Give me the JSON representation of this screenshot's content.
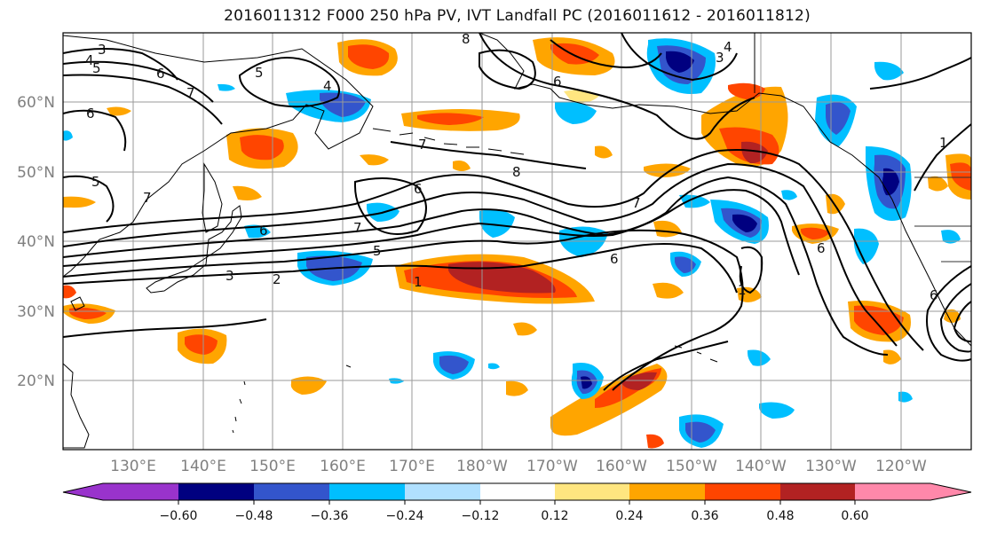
{
  "title": "2016011312 F000 250 hPa PV, IVT Landfall PC (2016011612 - 2016011812)",
  "lat_labels": [
    "60°N",
    "50°N",
    "40°N",
    "30°N",
    "20°N"
  ],
  "lon_labels": [
    "130°E",
    "140°E",
    "150°E",
    "160°E",
    "170°E",
    "180°W",
    "170°W",
    "160°W",
    "150°W",
    "140°W",
    "130°W",
    "120°W"
  ],
  "colorbar": {
    "ticks": [
      "−0.60",
      "−0.48",
      "−0.36",
      "−0.24",
      "−0.12",
      "0.12",
      "0.24",
      "0.36",
      "0.48",
      "0.60"
    ],
    "colors": [
      "#9933cc",
      "#000080",
      "#3355cc",
      "#00bfff",
      "#b0e0ff",
      "#ffffff",
      "#ffe680",
      "#ffa500",
      "#ff4500",
      "#b22222",
      "#ff88aa"
    ]
  },
  "contour_labels": [
    "3",
    "4",
    "5",
    "6",
    "7",
    "5",
    "4",
    "8",
    "6",
    "7",
    "6",
    "7",
    "8",
    "6",
    "6",
    "5",
    "7",
    "5",
    "3",
    "2",
    "1",
    "6",
    "7",
    "6",
    "4",
    "3",
    "1",
    "6",
    "1"
  ]
}
